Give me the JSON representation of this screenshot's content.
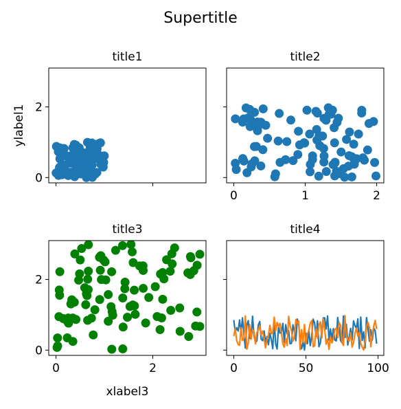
{
  "suptitle": "Supertitle",
  "colors": {
    "blue": "#1f77b4",
    "orange": "#ff7f0e",
    "green": "#008000"
  },
  "chart_data": [
    {
      "type": "scatter",
      "title": "title1",
      "xlabel": "",
      "ylabel": "ylabel1",
      "xlim": [
        -0.15,
        3.1
      ],
      "ylim": [
        -0.15,
        3.1
      ],
      "xticks": [
        0,
        2
      ],
      "xtick_labels_visible": false,
      "yticks": [
        0,
        2
      ],
      "ytick_labels_visible": true,
      "color": "#1f77b4",
      "seed": 11,
      "n": 100,
      "x_range": [
        0,
        1
      ],
      "y_range": [
        0,
        1
      ]
    },
    {
      "type": "scatter",
      "title": "title2",
      "xlabel": "",
      "ylabel": "",
      "xlim": [
        -0.1,
        2.1
      ],
      "ylim": [
        -0.15,
        3.1
      ],
      "xticks": [
        0,
        1,
        2
      ],
      "xtick_labels_visible": true,
      "yticks": [
        0,
        2
      ],
      "ytick_labels_visible": false,
      "color": "#1f77b4",
      "seed": 23,
      "n": 100,
      "x_range": [
        0,
        2
      ],
      "y_range": [
        0,
        2
      ]
    },
    {
      "type": "scatter",
      "title": "title3",
      "xlabel": "xlabel3",
      "ylabel": "",
      "xlim": [
        -0.15,
        3.1
      ],
      "ylim": [
        -0.15,
        3.1
      ],
      "xticks": [
        0,
        2
      ],
      "xtick_labels_visible": true,
      "yticks": [
        0,
        2
      ],
      "ytick_labels_visible": true,
      "color": "#008000",
      "seed": 37,
      "n": 100,
      "x_range": [
        0,
        3
      ],
      "y_range": [
        0,
        3
      ]
    },
    {
      "type": "line",
      "title": "title4",
      "xlabel": "",
      "ylabel": "",
      "xlim": [
        -5,
        104
      ],
      "ylim": [
        -0.15,
        3.1
      ],
      "xticks": [
        0,
        50,
        100
      ],
      "xtick_labels_visible": true,
      "yticks": [
        0,
        2
      ],
      "ytick_labels_visible": false,
      "series": [
        {
          "color": "#1f77b4",
          "seed": 41,
          "n": 100,
          "y_range": [
            0,
            1
          ]
        },
        {
          "color": "#ff7f0e",
          "seed": 59,
          "n": 100,
          "y_range": [
            0,
            1
          ]
        }
      ]
    }
  ]
}
